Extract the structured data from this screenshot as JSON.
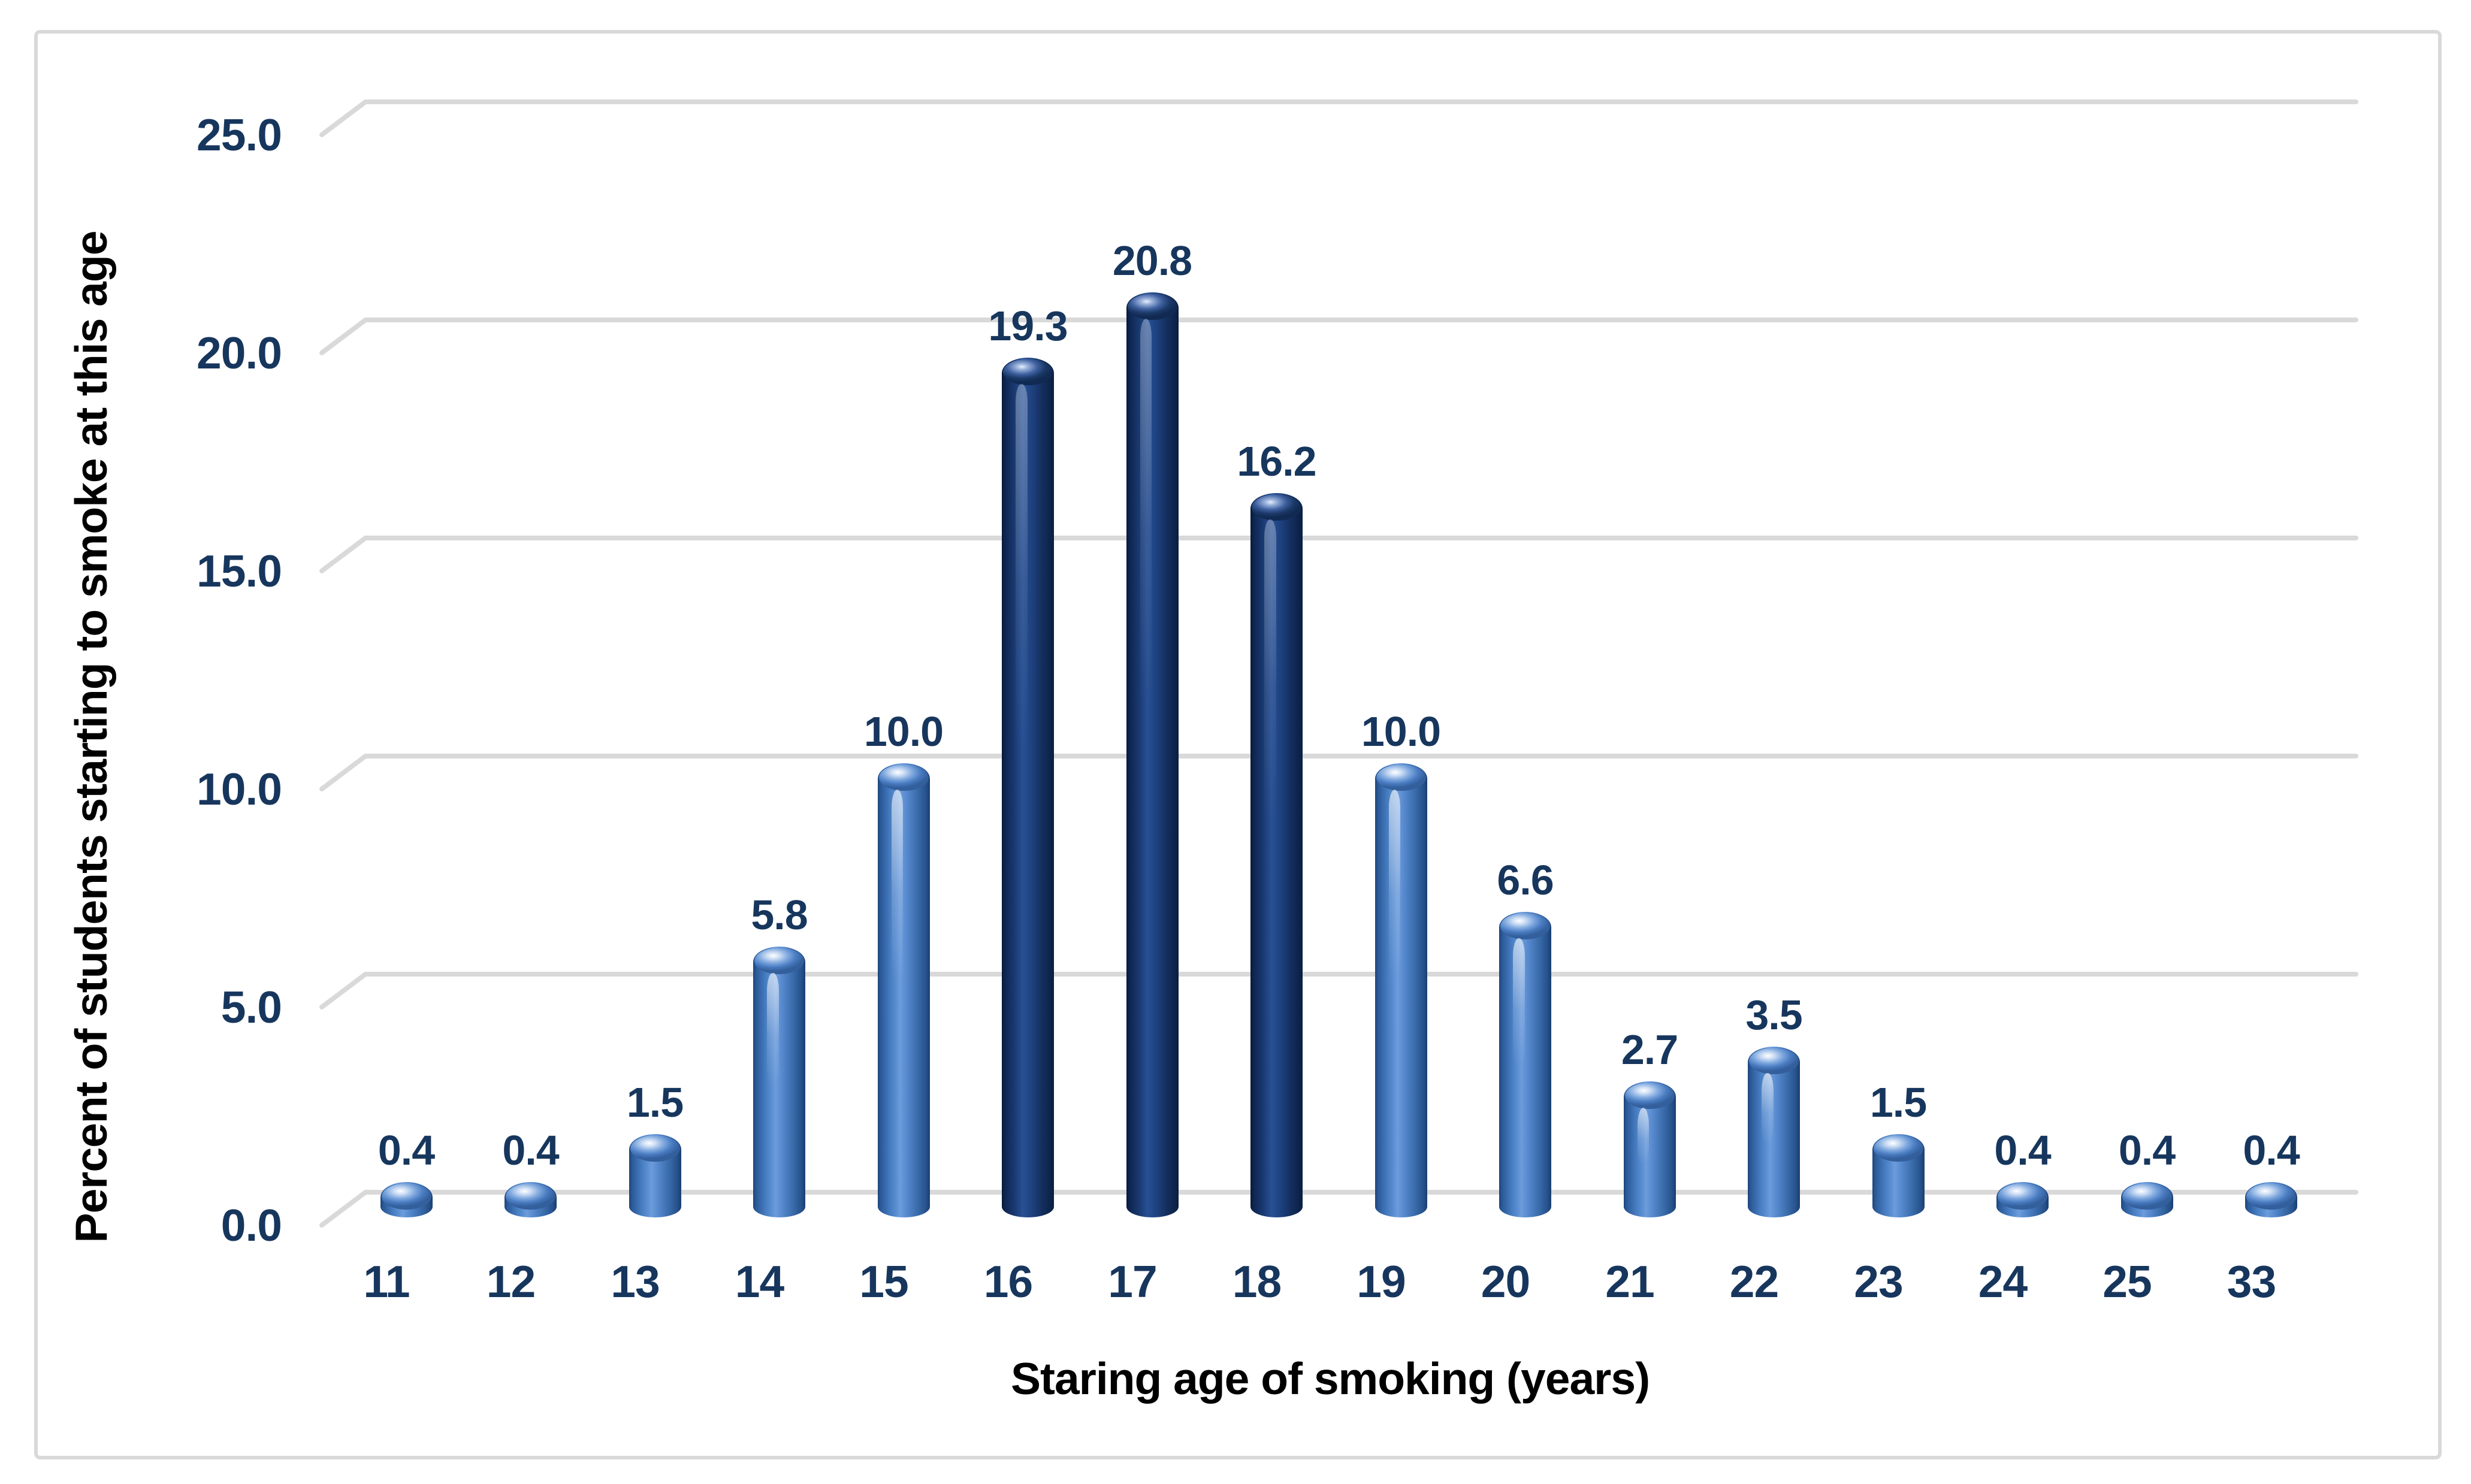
{
  "chart_data": {
    "type": "bar",
    "subtype": "3d-cylinder",
    "title": "",
    "xlabel": "Staring age of smoking (years)",
    "ylabel": "Percent of students starting to smoke at this age",
    "categories": [
      "11",
      "12",
      "13",
      "14",
      "15",
      "16",
      "17",
      "18",
      "19",
      "20",
      "21",
      "22",
      "23",
      "24",
      "25",
      "33"
    ],
    "values": [
      0.4,
      0.4,
      1.5,
      5.8,
      10.0,
      19.3,
      20.8,
      16.2,
      10.0,
      6.6,
      2.7,
      3.5,
      1.5,
      0.4,
      0.4,
      0.4
    ],
    "value_labels": [
      "0.4",
      "0.4",
      "1.5",
      "5.8",
      "10.0",
      "19.3",
      "20.8",
      "16.2",
      "10.0",
      "6.6",
      "2.7",
      "3.5",
      "1.5",
      "0.4",
      "0.4",
      "0.4"
    ],
    "highlight_categories": [
      "16",
      "17",
      "18"
    ],
    "ylim": [
      0,
      25
    ],
    "ytick_values": [
      0,
      5,
      10,
      15,
      20,
      25
    ],
    "ytick_labels": [
      "0.0",
      "5.0",
      "10.0",
      "15.0",
      "20.0",
      "25.0"
    ],
    "grid": true,
    "legend_position": "none",
    "colors": {
      "bar_light": "#4a7cc2",
      "bar_dark": "#15315f",
      "label_text": "#17365d",
      "axis_title_text": "#000000",
      "gridline": "#d9d9d9",
      "frame_border": "#d9d9d9",
      "background": "#ffffff"
    }
  }
}
